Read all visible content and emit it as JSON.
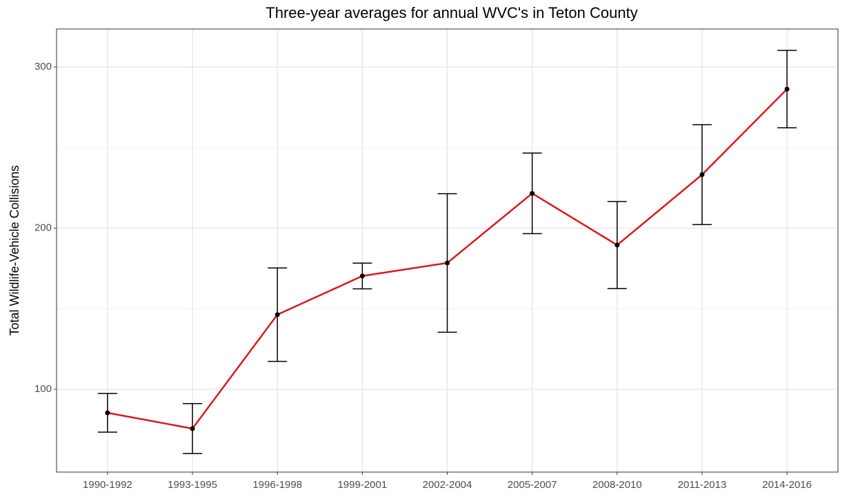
{
  "chart_data": {
    "type": "line",
    "title": "Three-year averages for annual WVC's in Teton County",
    "y_label": "Total Wildlife-Vehicle Collisions",
    "categories": [
      "1990-1992",
      "1993-1995",
      "1996-1998",
      "1999-2001",
      "2002-2004",
      "2005-2007",
      "2008-2010",
      "2011-2013",
      "2014-2016"
    ],
    "series": [
      {
        "color": "#d7191c",
        "values": [
          85.4,
          75.6,
          146.3,
          170.3,
          178.4,
          221.6,
          189.5,
          233.2,
          286.3
        ],
        "errors": [
          12,
          15.5,
          29,
          8,
          43,
          25,
          27,
          31,
          24
        ]
      }
    ],
    "ylim": [
      48.6,
      323.6
    ],
    "yticks": [
      100,
      200,
      300
    ],
    "grid": true
  }
}
